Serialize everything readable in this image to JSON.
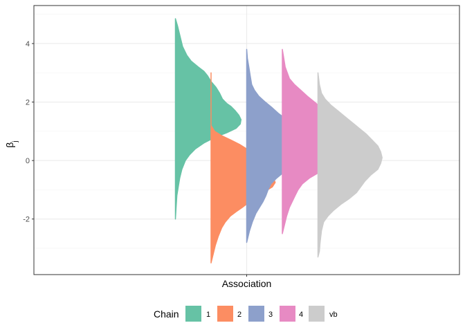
{
  "chart_data": {
    "type": "violin",
    "title": "",
    "xlabel": "Association",
    "ylabel": "β",
    "ylabel_subscript": "j",
    "ylim": [
      -3.9,
      5.3
    ],
    "yticks": [
      -2,
      0,
      2,
      4
    ],
    "ytick_labels": [
      "-2",
      "0",
      "2",
      "4"
    ],
    "grid": true,
    "legend": {
      "title": "Chain",
      "position": "bottom"
    },
    "series": [
      {
        "name": "1",
        "color": "#66c2a5",
        "density": [
          [
            4.85,
            0.0
          ],
          [
            4.6,
            0.03
          ],
          [
            4.3,
            0.06
          ],
          [
            3.9,
            0.1
          ],
          [
            3.6,
            0.16
          ],
          [
            3.4,
            0.22
          ],
          [
            3.2,
            0.32
          ],
          [
            3.05,
            0.4
          ],
          [
            2.9,
            0.45
          ],
          [
            2.7,
            0.5
          ],
          [
            2.5,
            0.57
          ],
          [
            2.3,
            0.62
          ],
          [
            2.1,
            0.66
          ],
          [
            1.95,
            0.72
          ],
          [
            1.85,
            0.78
          ],
          [
            1.7,
            0.84
          ],
          [
            1.55,
            0.89
          ],
          [
            1.4,
            0.92
          ],
          [
            1.25,
            0.91
          ],
          [
            1.1,
            0.85
          ],
          [
            0.95,
            0.72
          ],
          [
            0.8,
            0.56
          ],
          [
            0.6,
            0.4
          ],
          [
            0.4,
            0.28
          ],
          [
            0.2,
            0.2
          ],
          [
            0.0,
            0.14
          ],
          [
            -0.3,
            0.09
          ],
          [
            -0.6,
            0.06
          ],
          [
            -0.9,
            0.04
          ],
          [
            -1.2,
            0.02
          ],
          [
            -1.6,
            0.01
          ],
          [
            -2.0,
            0.0
          ]
        ]
      },
      {
        "name": "2",
        "color": "#fc8d62",
        "density": [
          [
            3.0,
            0.0
          ],
          [
            2.0,
            0.0
          ],
          [
            1.2,
            0.0
          ],
          [
            1.0,
            0.05
          ],
          [
            0.85,
            0.15
          ],
          [
            0.7,
            0.28
          ],
          [
            0.55,
            0.4
          ],
          [
            0.4,
            0.5
          ],
          [
            0.2,
            0.58
          ],
          [
            0.0,
            0.66
          ],
          [
            -0.2,
            0.74
          ],
          [
            -0.4,
            0.82
          ],
          [
            -0.6,
            0.88
          ],
          [
            -0.75,
            0.9
          ],
          [
            -0.9,
            0.86
          ],
          [
            -1.05,
            0.76
          ],
          [
            -1.25,
            0.62
          ],
          [
            -1.45,
            0.52
          ],
          [
            -1.6,
            0.44
          ],
          [
            -1.75,
            0.35
          ],
          [
            -1.9,
            0.27
          ],
          [
            -2.1,
            0.2
          ],
          [
            -2.3,
            0.15
          ],
          [
            -2.6,
            0.1
          ],
          [
            -2.9,
            0.06
          ],
          [
            -3.2,
            0.03
          ],
          [
            -3.5,
            0.0
          ]
        ]
      },
      {
        "name": "3",
        "color": "#8da0cb",
        "density": [
          [
            3.8,
            0.0
          ],
          [
            3.5,
            0.01
          ],
          [
            3.2,
            0.03
          ],
          [
            2.9,
            0.05
          ],
          [
            2.6,
            0.07
          ],
          [
            2.4,
            0.11
          ],
          [
            2.2,
            0.17
          ],
          [
            2.0,
            0.26
          ],
          [
            1.8,
            0.36
          ],
          [
            1.6,
            0.45
          ],
          [
            1.4,
            0.56
          ],
          [
            1.2,
            0.68
          ],
          [
            1.0,
            0.79
          ],
          [
            0.8,
            0.86
          ],
          [
            0.6,
            0.9
          ],
          [
            0.4,
            0.89
          ],
          [
            0.2,
            0.86
          ],
          [
            0.0,
            0.8
          ],
          [
            -0.2,
            0.66
          ],
          [
            -0.4,
            0.52
          ],
          [
            -0.6,
            0.42
          ],
          [
            -0.8,
            0.34
          ],
          [
            -1.0,
            0.3
          ],
          [
            -1.2,
            0.27
          ],
          [
            -1.4,
            0.23
          ],
          [
            -1.6,
            0.18
          ],
          [
            -1.8,
            0.13
          ],
          [
            -2.1,
            0.08
          ],
          [
            -2.4,
            0.04
          ],
          [
            -2.8,
            0.0
          ]
        ]
      },
      {
        "name": "4",
        "color": "#e78ac3",
        "density": [
          [
            3.8,
            0.0
          ],
          [
            3.5,
            0.02
          ],
          [
            3.2,
            0.04
          ],
          [
            3.0,
            0.07
          ],
          [
            2.8,
            0.1
          ],
          [
            2.6,
            0.17
          ],
          [
            2.4,
            0.26
          ],
          [
            2.2,
            0.35
          ],
          [
            2.0,
            0.45
          ],
          [
            1.8,
            0.55
          ],
          [
            1.6,
            0.62
          ],
          [
            1.4,
            0.7
          ],
          [
            1.2,
            0.78
          ],
          [
            1.0,
            0.84
          ],
          [
            0.8,
            0.87
          ],
          [
            0.6,
            0.88
          ],
          [
            0.4,
            0.86
          ],
          [
            0.2,
            0.82
          ],
          [
            0.0,
            0.76
          ],
          [
            -0.2,
            0.66
          ],
          [
            -0.4,
            0.52
          ],
          [
            -0.6,
            0.38
          ],
          [
            -0.8,
            0.28
          ],
          [
            -1.0,
            0.22
          ],
          [
            -1.2,
            0.18
          ],
          [
            -1.4,
            0.14
          ],
          [
            -1.6,
            0.1
          ],
          [
            -1.9,
            0.06
          ],
          [
            -2.2,
            0.03
          ],
          [
            -2.5,
            0.0
          ]
        ]
      },
      {
        "name": "vb",
        "color": "#cccccc",
        "density": [
          [
            3.0,
            0.0
          ],
          [
            2.6,
            0.02
          ],
          [
            2.3,
            0.05
          ],
          [
            2.1,
            0.1
          ],
          [
            1.9,
            0.18
          ],
          [
            1.7,
            0.28
          ],
          [
            1.5,
            0.38
          ],
          [
            1.3,
            0.48
          ],
          [
            1.1,
            0.58
          ],
          [
            0.9,
            0.68
          ],
          [
            0.7,
            0.76
          ],
          [
            0.5,
            0.84
          ],
          [
            0.3,
            0.88
          ],
          [
            0.1,
            0.9
          ],
          [
            -0.1,
            0.88
          ],
          [
            -0.3,
            0.84
          ],
          [
            -0.5,
            0.74
          ],
          [
            -0.7,
            0.66
          ],
          [
            -0.9,
            0.6
          ],
          [
            -1.1,
            0.54
          ],
          [
            -1.3,
            0.44
          ],
          [
            -1.5,
            0.32
          ],
          [
            -1.7,
            0.22
          ],
          [
            -1.9,
            0.14
          ],
          [
            -2.1,
            0.08
          ],
          [
            -2.4,
            0.05
          ],
          [
            -2.8,
            0.03
          ],
          [
            -3.1,
            0.02
          ],
          [
            -3.3,
            0.0
          ]
        ]
      }
    ]
  }
}
